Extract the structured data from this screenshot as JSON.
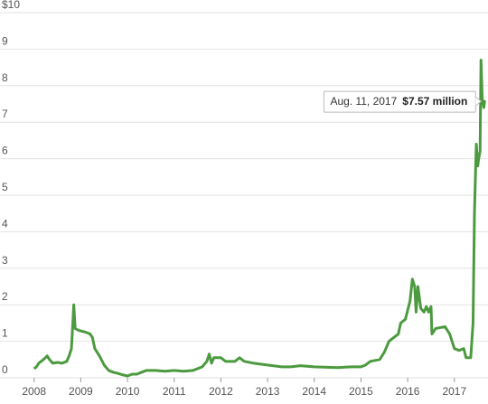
{
  "chart_data": {
    "type": "line",
    "x": [
      2008.0,
      2008.05,
      2008.1,
      2008.2,
      2008.28,
      2008.33,
      2008.4,
      2008.5,
      2008.6,
      2008.7,
      2008.75,
      2008.8,
      2008.85,
      2008.88,
      2008.95,
      2009.1,
      2009.2,
      2009.25,
      2009.3,
      2009.4,
      2009.5,
      2009.6,
      2009.7,
      2009.8,
      2009.9,
      2010.0,
      2010.1,
      2010.2,
      2010.3,
      2010.4,
      2010.6,
      2010.8,
      2011.0,
      2011.2,
      2011.4,
      2011.6,
      2011.7,
      2011.75,
      2011.8,
      2011.85,
      2012.0,
      2012.1,
      2012.3,
      2012.4,
      2012.5,
      2012.7,
      2013.0,
      2013.3,
      2013.5,
      2013.7,
      2014.0,
      2014.5,
      2014.8,
      2015.0,
      2015.1,
      2015.2,
      2015.4,
      2015.5,
      2015.6,
      2015.7,
      2015.8,
      2015.85,
      2015.95,
      2016.05,
      2016.1,
      2016.15,
      2016.18,
      2016.22,
      2016.28,
      2016.35,
      2016.4,
      2016.45,
      2016.5,
      2016.52,
      2016.6,
      2016.8,
      2016.9,
      2017.0,
      2017.1,
      2017.2,
      2017.25,
      2017.35,
      2017.4,
      2017.43,
      2017.45,
      2017.47,
      2017.5,
      2017.52,
      2017.55,
      2017.57,
      2017.6,
      2017.61,
      2017.63,
      2017.65
    ],
    "series": [
      {
        "color": "#4c9a3f",
        "values": [
          0.25,
          0.3,
          0.4,
          0.5,
          0.6,
          0.5,
          0.4,
          0.42,
          0.4,
          0.45,
          0.6,
          0.8,
          2.0,
          1.35,
          1.3,
          1.25,
          1.2,
          1.1,
          0.8,
          0.6,
          0.35,
          0.2,
          0.15,
          0.12,
          0.08,
          0.05,
          0.1,
          0.1,
          0.15,
          0.2,
          0.2,
          0.18,
          0.2,
          0.18,
          0.2,
          0.3,
          0.45,
          0.65,
          0.4,
          0.55,
          0.55,
          0.45,
          0.45,
          0.55,
          0.45,
          0.4,
          0.35,
          0.3,
          0.3,
          0.33,
          0.3,
          0.28,
          0.3,
          0.3,
          0.35,
          0.45,
          0.5,
          0.7,
          1.0,
          1.1,
          1.2,
          1.5,
          1.6,
          2.1,
          2.7,
          2.5,
          1.8,
          2.5,
          1.9,
          1.8,
          1.95,
          1.8,
          1.95,
          1.2,
          1.35,
          1.4,
          1.2,
          0.8,
          0.75,
          0.8,
          0.55,
          0.55,
          1.5,
          4.5,
          5.5,
          6.4,
          5.8,
          6.0,
          6.2,
          8.7,
          7.5,
          7.57,
          7.4,
          7.6
        ]
      }
    ],
    "xlim": [
      2007.27,
      2017.72
    ],
    "xticks": [
      2008,
      2009,
      2010,
      2011,
      2012,
      2013,
      2014,
      2015,
      2016,
      2017
    ],
    "ylim": [
      0,
      10
    ],
    "yticks": [
      0,
      1,
      2,
      3,
      4,
      5,
      6,
      7,
      8,
      9,
      {
        "value": 10,
        "label": "$10"
      }
    ],
    "grid": true,
    "tooltip": {
      "x": 2017.61,
      "y": 7.57,
      "date": "Aug. 11, 2017",
      "value": "$7.57 million"
    }
  }
}
